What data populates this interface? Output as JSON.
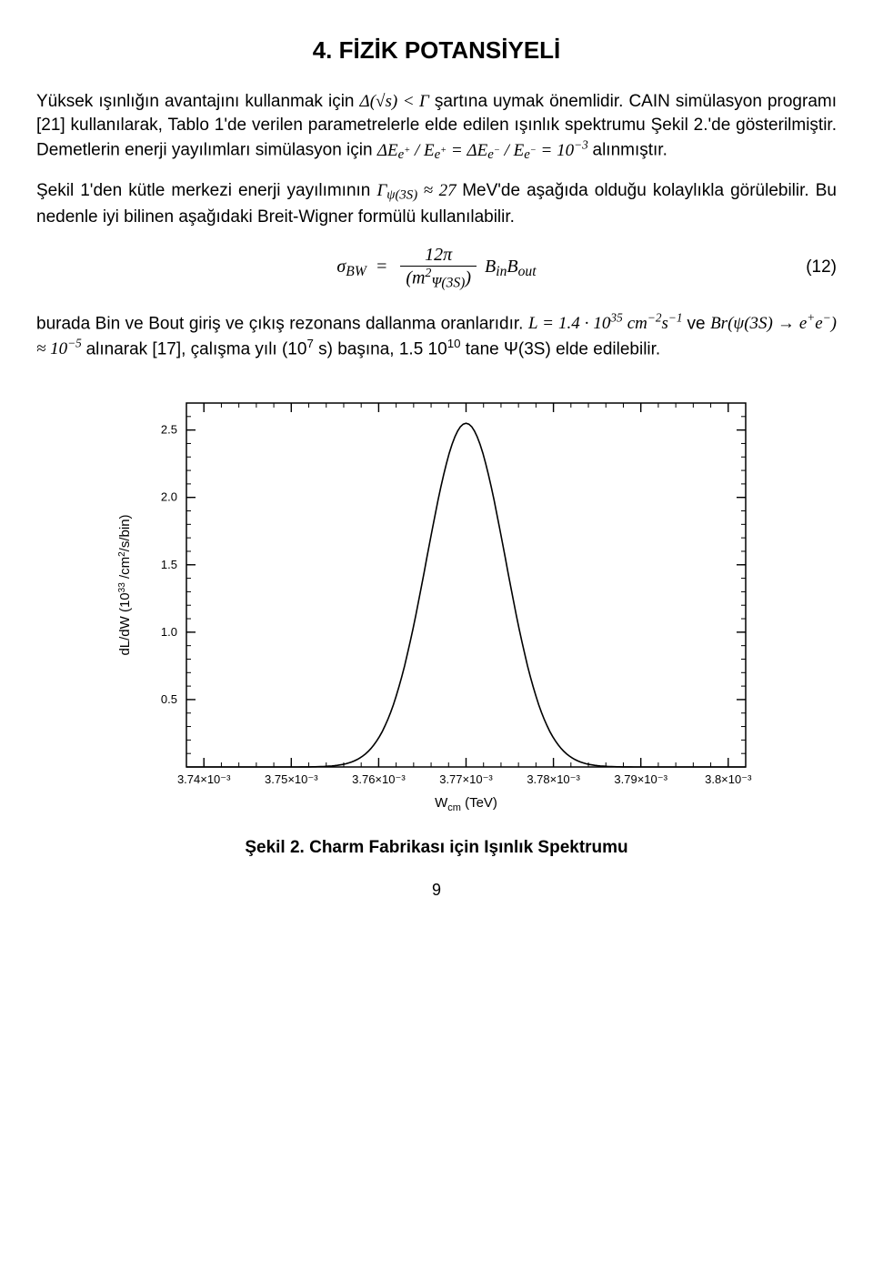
{
  "title": "4. FİZİK POTANSİYELİ",
  "p1a": "Yüksek ışınlığın avantajını kullanmak için ",
  "p1_eq": "Δ(√s) < Γ",
  "p1b": " şartına uymak önemlidir. CAIN simülasyon programı [21] kullanılarak, Tablo 1'de verilen parametrelerle elde edilen ışınlık spektrumu Şekil 2.'de gösterilmiştir. Demetlerin enerji yayılımları simülasyon için ",
  "p1_eq2a": "ΔE",
  "p1_eq2b": " / E",
  "p1_eq2c": " = ΔE",
  "p1_eq2d": " / E",
  "p1_eq2e": " = 10",
  "p1_eq2f": " alınmıştır.",
  "p2a": "Şekil 1'den kütle merkezi enerji yayılımının ",
  "p2_eq": "Γ",
  "p2_eq_sub": "ψ(3S)",
  "p2_eq2": " ≈ 27",
  "p2b": " MeV'de aşağıda olduğu kolaylıkla görülebilir. Bu nedenle iyi bilinen aşağıdaki  Breit-Wigner formülü kullanılabilir.",
  "eq12": {
    "lhs": "σ",
    "lhs_sub": "BW",
    "num": "12π",
    "den_a": "(m",
    "den_sub": "Ψ(3S)",
    "den_sup": "2",
    "den_b": ")",
    "rhs_a": "B",
    "rhs_asub": "in",
    "rhs_b": "B",
    "rhs_bsub": "out",
    "num_label": "(12)"
  },
  "p3a": "burada Bin ve Bout giriş ve çıkış rezonans dallanma oranlarıdır. ",
  "p3_eqL": "L = 1.4 · 10",
  "p3_eqL_sup": "35",
  "p3_eqL_b": " cm",
  "p3_eqL_bsup": "−2",
  "p3_eqL_c": "s",
  "p3_eqL_csup": "−1",
  "p3_ve": " ve  ",
  "p3_eqBr": "Br(ψ(3S) → e",
  "p3_eqBr_sup1": "+",
  "p3_eqBr_mid": "e",
  "p3_eqBr_sup2": "−",
  "p3_eqBr_end": ") ≈ 10",
  "p3_eqBr_sup3": "−5",
  "p3b": " alınarak [17],  çalışma yılı  (10",
  "p3b_sup": "7",
  "p3c": " s) başına, 1.5 10",
  "p3c_sup": "10",
  "p3d": " tane Ψ(3S) elde edilebilir.",
  "caption": "Şekil 2. Charm Fabrikası için Işınlık Spektrumu",
  "pagenum": "9",
  "chart": {
    "type": "line",
    "background_color": "#ffffff",
    "line_color": "#000000",
    "line_width": 1.6,
    "axis_color": "#000000",
    "axis_width": 1.5,
    "tick_fontsize": 13,
    "label_fontsize": 15,
    "xlabel": "W_cm   (TeV)",
    "ylabel": "dL/dW  (10^33 /cm^2/s/bin)",
    "xlim": [
      3.738,
      3.802
    ],
    "ylim": [
      0,
      2.7
    ],
    "xticks": [
      3.74,
      3.75,
      3.76,
      3.77,
      3.78,
      3.79,
      3.8
    ],
    "xtick_labels": [
      "3.74×10⁻³",
      "3.75×10⁻³",
      "3.76×10⁻³",
      "3.77×10⁻³",
      "3.78×10⁻³",
      "3.79×10⁻³",
      "3.8×10⁻³"
    ],
    "yticks": [
      0.5,
      1.0,
      1.5,
      2.0,
      2.5
    ],
    "ytick_labels": [
      "0.5",
      "1.0",
      "1.5",
      "2.0",
      "2.5"
    ],
    "x_minor_step": 0.002,
    "y_minor_step": 0.1,
    "peak_x": 3.77,
    "peak_y": 2.55,
    "sigma": 0.0045
  }
}
